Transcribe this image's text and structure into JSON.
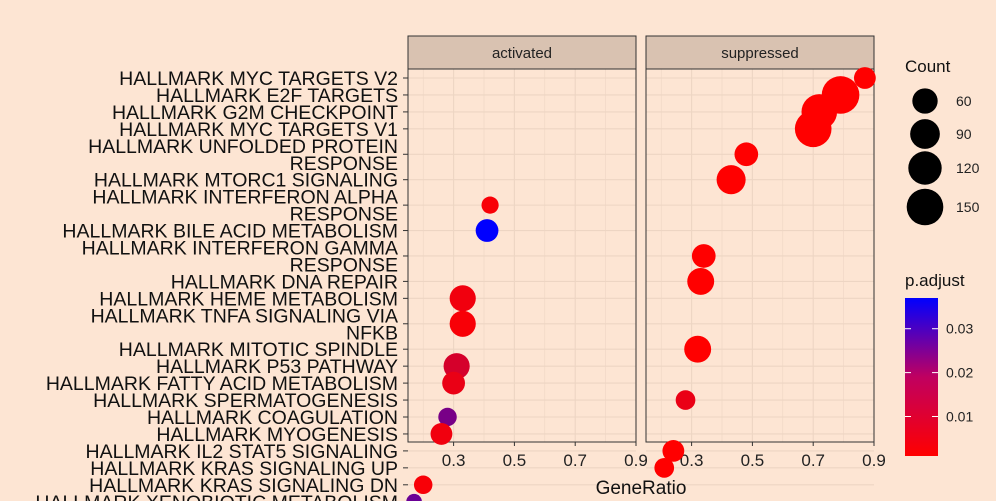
{
  "chart_data": {
    "type": "scatter",
    "xlabel": "GeneRatio",
    "ylabel": "",
    "xlim": [
      0.15,
      0.9
    ],
    "x_ticks": [
      "0.3",
      "0.5",
      "0.7",
      "0.9"
    ],
    "grid": true,
    "legend_position": "right",
    "panels": [
      {
        "name": "activated",
        "points": [
          {
            "term": "HALLMARK INTERFERON ALPHA RESPONSE",
            "x": 0.42,
            "count": 20,
            "p_adjust": 0.002
          },
          {
            "term": "HALLMARK BILE ACID METABOLISM",
            "x": 0.41,
            "count": 45,
            "p_adjust": 0.037
          },
          {
            "term": "HALLMARK HEME METABOLISM",
            "x": 0.33,
            "count": 65,
            "p_adjust": 0.003
          },
          {
            "term": "HALLMARK TNFA SIGNALING VIA NFKB",
            "x": 0.33,
            "count": 65,
            "p_adjust": 0.002
          },
          {
            "term": "HALLMARK P53 PATHWAY",
            "x": 0.31,
            "count": 65,
            "p_adjust": 0.007
          },
          {
            "term": "HALLMARK FATTY ACID METABOLISM",
            "x": 0.3,
            "count": 45,
            "p_adjust": 0.004
          },
          {
            "term": "HALLMARK COAGULATION",
            "x": 0.28,
            "count": 25,
            "p_adjust": 0.02
          },
          {
            "term": "HALLMARK MYOGENESIS",
            "x": 0.26,
            "count": 40,
            "p_adjust": 0.003
          },
          {
            "term": "HALLMARK KRAS SIGNALING DN",
            "x": 0.2,
            "count": 25,
            "p_adjust": 0.002
          },
          {
            "term": "HALLMARK XENOBIOTIC METABOLISM",
            "x": 0.17,
            "count": 15,
            "p_adjust": 0.022
          }
        ]
      },
      {
        "name": "suppressed",
        "points": [
          {
            "term": "HALLMARK MYC TARGETS V2",
            "x": 0.87,
            "count": 40,
            "p_adjust": 0.001
          },
          {
            "term": "HALLMARK E2F TARGETS",
            "x": 0.79,
            "count": 160,
            "p_adjust": 0.001
          },
          {
            "term": "HALLMARK G2M CHECKPOINT",
            "x": 0.72,
            "count": 140,
            "p_adjust": 0.001
          },
          {
            "term": "HALLMARK MYC TARGETS V1",
            "x": 0.7,
            "count": 150,
            "p_adjust": 0.001
          },
          {
            "term": "HALLMARK UNFOLDED PROTEIN RESPONSE",
            "x": 0.48,
            "count": 50,
            "p_adjust": 0.001
          },
          {
            "term": "HALLMARK MTORC1 SIGNALING",
            "x": 0.43,
            "count": 85,
            "p_adjust": 0.001
          },
          {
            "term": "HALLMARK INTERFERON GAMMA RESPONSE",
            "x": 0.34,
            "count": 50,
            "p_adjust": 0.001
          },
          {
            "term": "HALLMARK DNA REPAIR",
            "x": 0.33,
            "count": 70,
            "p_adjust": 0.001
          },
          {
            "term": "HALLMARK MITOTIC SPINDLE",
            "x": 0.32,
            "count": 70,
            "p_adjust": 0.001
          },
          {
            "term": "HALLMARK SPERMATOGENESIS",
            "x": 0.28,
            "count": 30,
            "p_adjust": 0.004
          },
          {
            "term": "HALLMARK IL2 STAT5 SIGNALING",
            "x": 0.24,
            "count": 40,
            "p_adjust": 0.001
          },
          {
            "term": "HALLMARK KRAS SIGNALING UP",
            "x": 0.21,
            "count": 30,
            "p_adjust": 0.001
          }
        ]
      }
    ],
    "y_labels": [
      {
        "text": "HALLMARK MYC TARGETS V2",
        "panel": "suppressed",
        "term": "HALLMARK MYC TARGETS V2"
      },
      {
        "text": "HALLMARK E2F TARGETS",
        "panel": "suppressed",
        "term": "HALLMARK E2F TARGETS"
      },
      {
        "text": "HALLMARK G2M CHECKPOINT",
        "panel": "suppressed",
        "term": "HALLMARK G2M CHECKPOINT"
      },
      {
        "text": "HALLMARK MYC TARGETS V1",
        "panel": "suppressed",
        "term": "HALLMARK MYC TARGETS V1"
      },
      {
        "text": "HALLMARK UNFOLDED PROTEIN",
        "panel": "suppressed",
        "term": "HALLMARK UNFOLDED PROTEIN RESPONSE"
      },
      {
        "text": "RESPONSE",
        "panel": "suppressed",
        "term": "HALLMARK UNFOLDED PROTEIN RESPONSE"
      },
      {
        "text": "HALLMARK MTORC1 SIGNALING",
        "panel": "suppressed",
        "term": "HALLMARK MTORC1 SIGNALING"
      },
      {
        "text": "HALLMARK INTERFERON ALPHA",
        "panel": "activated",
        "term": "HALLMARK INTERFERON ALPHA RESPONSE"
      },
      {
        "text": "RESPONSE",
        "panel": "activated",
        "term": "HALLMARK INTERFERON ALPHA RESPONSE"
      },
      {
        "text": "HALLMARK BILE ACID METABOLISM",
        "panel": "activated",
        "term": "HALLMARK BILE ACID METABOLISM"
      },
      {
        "text": "HALLMARK INTERFERON GAMMA",
        "panel": "suppressed",
        "term": "HALLMARK INTERFERON GAMMA RESPONSE"
      },
      {
        "text": "RESPONSE",
        "panel": "suppressed",
        "term": "HALLMARK INTERFERON GAMMA RESPONSE"
      },
      {
        "text": "HALLMARK DNA REPAIR",
        "panel": "suppressed",
        "term": "HALLMARK DNA REPAIR"
      },
      {
        "text": "HALLMARK HEME METABOLISM",
        "panel": "activated",
        "term": "HALLMARK HEME METABOLISM"
      },
      {
        "text": "HALLMARK TNFA SIGNALING VIA",
        "panel": "activated",
        "term": "HALLMARK TNFA SIGNALING VIA NFKB"
      },
      {
        "text": "NFKB",
        "panel": "activated",
        "term": "HALLMARK TNFA SIGNALING VIA NFKB"
      },
      {
        "text": "HALLMARK MITOTIC SPINDLE",
        "panel": "suppressed",
        "term": "HALLMARK MITOTIC SPINDLE"
      },
      {
        "text": "HALLMARK P53 PATHWAY",
        "panel": "activated",
        "term": "HALLMARK P53 PATHWAY"
      },
      {
        "text": "HALLMARK FATTY ACID METABOLISM",
        "panel": "activated",
        "term": "HALLMARK FATTY ACID METABOLISM"
      },
      {
        "text": "HALLMARK SPERMATOGENESIS",
        "panel": "suppressed",
        "term": "HALLMARK SPERMATOGENESIS"
      },
      {
        "text": "HALLMARK COAGULATION",
        "panel": "activated",
        "term": "HALLMARK COAGULATION"
      },
      {
        "text": "HALLMARK MYOGENESIS",
        "panel": "activated",
        "term": "HALLMARK MYOGENESIS"
      },
      {
        "text": "HALLMARK IL2 STAT5 SIGNALING",
        "panel": "suppressed",
        "term": "HALLMARK IL2 STAT5 SIGNALING"
      },
      {
        "text": "HALLMARK KRAS SIGNALING UP",
        "panel": "suppressed",
        "term": "HALLMARK KRAS SIGNALING UP"
      },
      {
        "text": "HALLMARK KRAS SIGNALING DN",
        "panel": "activated",
        "term": "HALLMARK KRAS SIGNALING DN"
      },
      {
        "text": "HALLMARK XENOBIOTIC METABOLISM",
        "panel": "activated",
        "term": "HALLMARK XENOBIOTIC METABOLISM"
      }
    ],
    "legend_count": {
      "title": "Count",
      "values": [
        60,
        90,
        120,
        150
      ]
    },
    "legend_padjust": {
      "title": "p.adjust",
      "min": 0.001,
      "max": 0.037,
      "ticks": [
        "0.01",
        "0.02",
        "0.03"
      ],
      "tick_values": [
        0.01,
        0.02,
        0.03
      ],
      "low_color": "#FF0000",
      "high_color": "#0000FF"
    },
    "colors": {
      "background": "#FDE5D3",
      "panel": "#FDE5D3",
      "strip": "#D9C2B1",
      "grid": "#EDD5C3"
    }
  }
}
